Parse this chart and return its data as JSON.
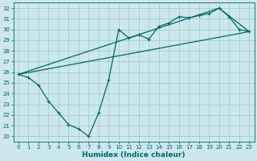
{
  "xlabel": "Humidex (Indice chaleur)",
  "bg_color": "#cce8ee",
  "line_color": "#006666",
  "grid_color": "#99ccbb",
  "xlim": [
    -0.5,
    23.5
  ],
  "ylim": [
    19.5,
    32.5
  ],
  "xticks": [
    0,
    1,
    2,
    3,
    4,
    5,
    6,
    7,
    8,
    9,
    10,
    11,
    12,
    13,
    14,
    15,
    16,
    17,
    18,
    19,
    20,
    21,
    22,
    23
  ],
  "yticks": [
    20,
    21,
    22,
    23,
    24,
    25,
    26,
    27,
    28,
    29,
    30,
    31,
    32
  ],
  "line1_x": [
    0,
    1,
    2,
    3,
    4,
    5,
    6,
    7,
    8,
    9,
    10,
    11,
    12,
    13,
    14,
    15,
    16,
    17,
    18,
    19,
    20,
    21,
    22,
    23
  ],
  "line1_y": [
    25.8,
    25.5,
    24.8,
    23.3,
    22.2,
    21.1,
    20.7,
    20.0,
    22.2,
    25.3,
    30.0,
    29.2,
    29.5,
    29.1,
    30.3,
    30.6,
    31.2,
    31.1,
    31.3,
    31.5,
    32.0,
    31.2,
    30.0,
    29.8
  ],
  "line2_x": [
    0,
    20,
    23
  ],
  "line2_y": [
    25.8,
    32.0,
    29.8
  ],
  "line3_x": [
    0,
    23
  ],
  "line3_y": [
    25.8,
    29.8
  ],
  "marker_size": 2.5,
  "linewidth": 0.9,
  "tick_fontsize": 5.0,
  "label_fontsize": 6.5
}
